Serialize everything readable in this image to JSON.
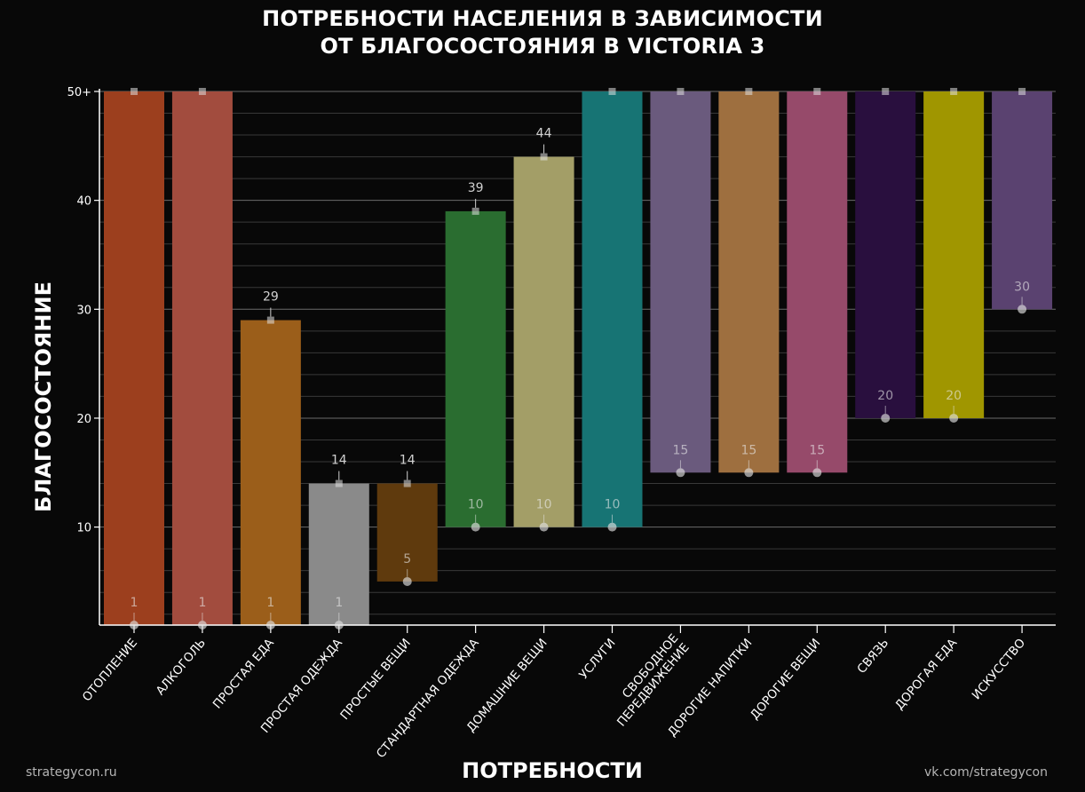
{
  "title": {
    "line1": "ПОТРЕБНОСТИ НАСЕЛЕНИЯ В ЗАВИСИМОСТИ",
    "line2": "ОТ БЛАГОСОСТОЯНИЯ В VICTORIA 3"
  },
  "footer": {
    "left": "strategycon.ru",
    "right": "vk.com/strategycon"
  },
  "colors": {
    "background": "#080808",
    "grid": "#555555",
    "axis": "#ffffff"
  },
  "chart_data": {
    "type": "bar",
    "subtype": "floating-range",
    "title": "ПОТРЕБНОСТИ НАСЕЛЕНИЯ В ЗАВИСИМОСТИ ОТ БЛАГОСОСТОЯНИЯ В VICTORIA 3",
    "xlabel": "ПОТРЕБНОСТИ",
    "ylabel": "БЛАГОСОСТОЯНИЕ",
    "ylim": [
      1,
      50
    ],
    "yticks": [
      10,
      20,
      30,
      40,
      50
    ],
    "ytick_labels": [
      "10",
      "20",
      "30",
      "40",
      "50+"
    ],
    "grid": true,
    "categories": [
      {
        "label": "ОТОПЛЕНИЕ",
        "start": 1,
        "end": 50,
        "start_label": "1",
        "end_label": null,
        "color": "#9c3f1e"
      },
      {
        "label": "АЛКОГОЛЬ",
        "start": 1,
        "end": 50,
        "start_label": "1",
        "end_label": null,
        "color": "#a24c3e"
      },
      {
        "label": "ПРОСТАЯ ЕДА",
        "start": 1,
        "end": 29,
        "start_label": "1",
        "end_label": "29",
        "color": "#9b5e1a"
      },
      {
        "label": "ПРОСТАЯ ОДЕЖДА",
        "start": 1,
        "end": 14,
        "start_label": "1",
        "end_label": "14",
        "color": "#8a8a8a"
      },
      {
        "label": "ПРОСТЫЕ ВЕЩИ",
        "start": 5,
        "end": 14,
        "start_label": "5",
        "end_label": "14",
        "color": "#5f3a0d"
      },
      {
        "label": "СТАНДАРТНАЯ ОДЕЖДА",
        "start": 10,
        "end": 39,
        "start_label": "10",
        "end_label": "39",
        "color": "#2a6d30"
      },
      {
        "label": "ДОМАШНИЕ ВЕЩИ",
        "start": 10,
        "end": 44,
        "start_label": "10",
        "end_label": "44",
        "color": "#a39e67"
      },
      {
        "label": "УСЛУГИ",
        "start": 10,
        "end": 50,
        "start_label": "10",
        "end_label": null,
        "color": "#177474"
      },
      {
        "label": "СВОБОДНОЕ ПЕРЕДВИЖЕНИЕ",
        "start": 15,
        "end": 50,
        "start_label": "15",
        "end_label": null,
        "color": "#6a5a7d"
      },
      {
        "label": "ДОРОГИЕ НАПИТКИ",
        "start": 15,
        "end": 50,
        "start_label": "15",
        "end_label": null,
        "color": "#9e6f3f"
      },
      {
        "label": "ДОРОГИЕ ВЕЩИ",
        "start": 15,
        "end": 50,
        "start_label": "15",
        "end_label": null,
        "color": "#964a6a"
      },
      {
        "label": "СВЯЗЬ",
        "start": 20,
        "end": 50,
        "start_label": "20",
        "end_label": null,
        "color": "#290f3e"
      },
      {
        "label": "ДОРОГАЯ ЕДА",
        "start": 20,
        "end": 50,
        "start_label": "20",
        "end_label": null,
        "color": "#a09600"
      },
      {
        "label": "ИСКУССТВО",
        "start": 30,
        "end": 50,
        "start_label": "30",
        "end_label": null,
        "color": "#5a4270"
      }
    ]
  }
}
